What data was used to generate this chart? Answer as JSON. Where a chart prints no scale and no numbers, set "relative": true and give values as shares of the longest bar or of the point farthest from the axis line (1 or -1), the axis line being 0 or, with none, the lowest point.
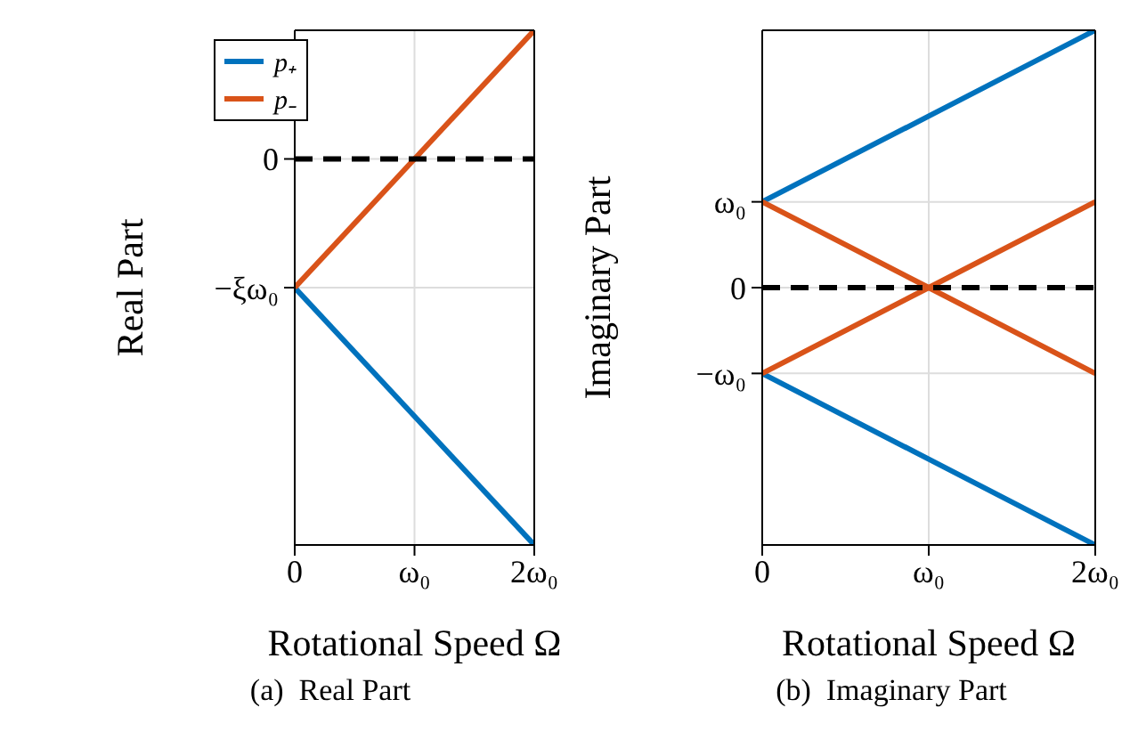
{
  "chart_data": [
    {
      "type": "line",
      "relative": true,
      "ylabel": "Real Part",
      "xlabel": "Rotational Speed Ω",
      "categories": [
        "0",
        "ω₀",
        "2ω₀"
      ],
      "grid": true,
      "legend": "top left",
      "line_style": "solid",
      "marker": "none",
      "series": [
        {
          "name": "p₊",
          "color": "#0072bd",
          "values": [
            0.5,
            0.25,
            0
          ]
        },
        {
          "name": "p₋",
          "color": "#d95319",
          "values": [
            0.5,
            0.75,
            1
          ]
        }
      ],
      "ref_lines": [
        {
          "axis": "y",
          "value": 0.75,
          "color": "#000000",
          "line_style": "dashed"
        }
      ],
      "annotations": [
        {
          "text": "0",
          "x": "0",
          "y": 0.75
        },
        {
          "text": "−ξω₀",
          "x": "0",
          "y": 0.5
        },
        "(a)  Real Part"
      ]
    },
    {
      "type": "line",
      "relative": true,
      "ylabel": "Imaginary Part",
      "xlabel": "Rotational Speed Ω",
      "categories": [
        "0",
        "ω₀",
        "2ω₀"
      ],
      "grid": true,
      "line_style": "solid",
      "marker": "none",
      "series": [
        {
          "color": "#0072bd",
          "values": [
            0.6667,
            0.8333,
            1
          ]
        },
        {
          "color": "#0072bd",
          "values": [
            0.3333,
            0.1667,
            0
          ]
        },
        {
          "color": "#d95319",
          "values": [
            0.6667,
            0.5,
            0.3333
          ]
        },
        {
          "color": "#d95319",
          "values": [
            0.3333,
            0.5,
            0.6667
          ]
        }
      ],
      "ref_lines": [
        {
          "axis": "y",
          "value": 0.5,
          "color": "#000000",
          "line_style": "dashed"
        }
      ],
      "annotations": [
        {
          "text": "ω₀",
          "x": "0",
          "y": 0.6667
        },
        {
          "text": "0",
          "x": "0",
          "y": 0.5
        },
        {
          "text": "−ω₀",
          "x": "0",
          "y": 0.3333
        },
        "(b)  Imaginary Part"
      ]
    }
  ]
}
